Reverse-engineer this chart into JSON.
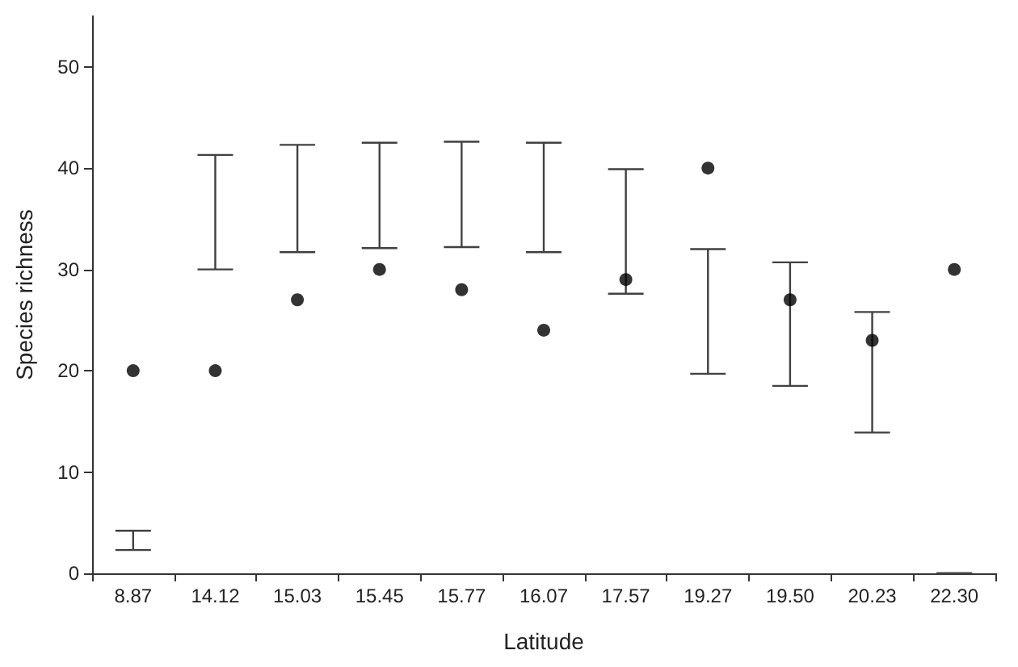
{
  "chart_data": {
    "type": "scatter",
    "xlabel": "Latitude",
    "ylabel": "Species richness",
    "categories": [
      "8.87",
      "14.12",
      "15.03",
      "15.45",
      "15.77",
      "16.07",
      "17.57",
      "19.27",
      "19.50",
      "20.23",
      "22.30"
    ],
    "series": [
      {
        "color": "#000000",
        "values": [
          20,
          20,
          27,
          30,
          28,
          24,
          29,
          40,
          27,
          23,
          30
        ],
        "errors": [
          [
            2.3,
            4.2
          ],
          [
            30,
            41.3
          ],
          [
            31.7,
            42.3
          ],
          [
            32.1,
            42.5
          ],
          [
            32.2,
            42.6
          ],
          [
            31.7,
            42.5
          ],
          [
            27.6,
            39.9
          ],
          [
            19.7,
            32
          ],
          [
            18.5,
            30.7
          ],
          [
            13.9,
            25.8
          ],
          [
            0,
            0
          ]
        ]
      }
    ],
    "ylim": [
      0,
      55
    ],
    "yticks": [
      0,
      10,
      20,
      30,
      40,
      50
    ],
    "grid": false,
    "marker": "circle"
  }
}
